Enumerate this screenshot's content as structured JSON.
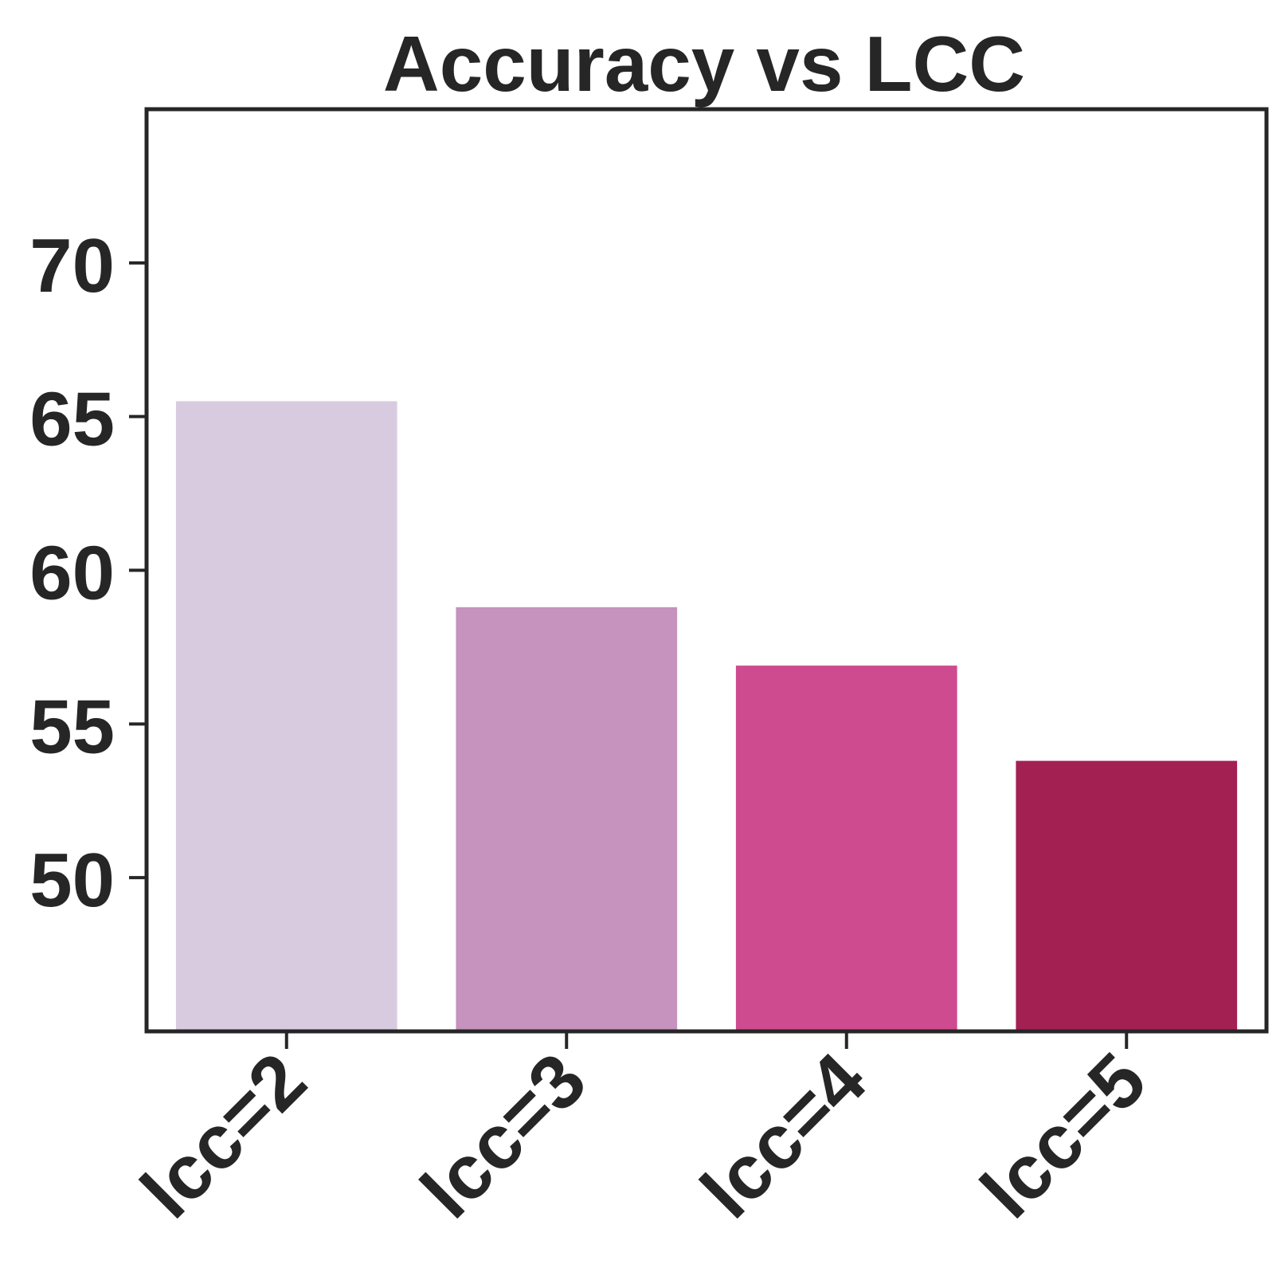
{
  "chart_data": {
    "type": "bar",
    "title": "Accuracy vs LCC",
    "xlabel": "",
    "ylabel": "",
    "categories": [
      "lcc=2",
      "lcc=3",
      "lcc=4",
      "lcc=5"
    ],
    "values": [
      65.5,
      58.8,
      56.9,
      53.8
    ],
    "colors": [
      "#d9cbdf",
      "#c692be",
      "#cd4b8e",
      "#a32152"
    ],
    "ylim": [
      45,
      75
    ],
    "yticks": [
      50,
      55,
      60,
      65,
      70
    ],
    "grid": false,
    "legend": "none"
  }
}
